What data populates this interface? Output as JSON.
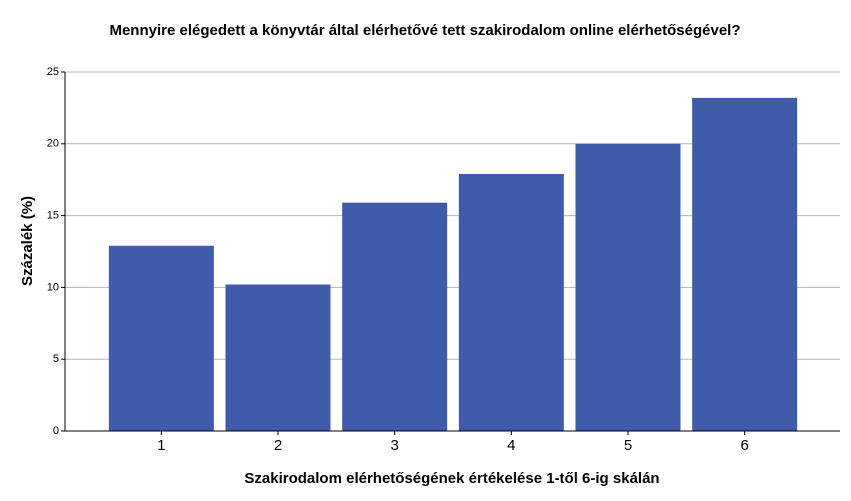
{
  "chart_data": {
    "type": "bar",
    "title": "Mennyire elégedett a könyvtár által elérhetővé tett szakirodalom online elérhetőségével?",
    "x_label": "Szakirodalom elérhetőségének értékelése 1-től 6-ig skálán",
    "y_label": "Százalék (%)",
    "categories": [
      "1",
      "2",
      "3",
      "4",
      "5",
      "6"
    ],
    "values": [
      12.9,
      10.2,
      15.9,
      17.9,
      20.0,
      23.2
    ],
    "color": "#3f5ba9",
    "ylim": [
      0,
      25
    ],
    "yticks": [
      0,
      5,
      10,
      15,
      20,
      25
    ],
    "grid": true
  }
}
